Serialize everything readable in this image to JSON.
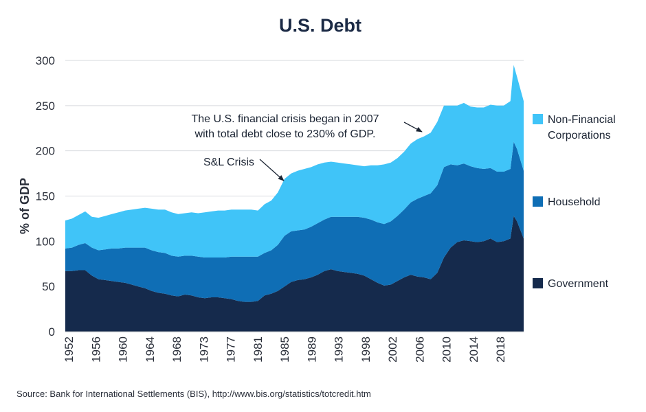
{
  "chart_data": {
    "type": "area",
    "stacked": true,
    "title": "U.S. Debt",
    "ylabel": "% of GDP",
    "ylim": [
      0,
      300
    ],
    "yticks": [
      0,
      50,
      100,
      150,
      200,
      250,
      300
    ],
    "xlim": [
      1952,
      2021
    ],
    "xtick_labels": [
      "1952",
      "1956",
      "1960",
      "1964",
      "1968",
      "1973",
      "1977",
      "1981",
      "1985",
      "1989",
      "1993",
      "1998",
      "2002",
      "2006",
      "2010",
      "2014",
      "2018"
    ],
    "grid": true,
    "legend_position": "right",
    "x": [
      1952,
      1953,
      1954,
      1955,
      1956,
      1957,
      1958,
      1959,
      1960,
      1961,
      1962,
      1963,
      1964,
      1965,
      1966,
      1967,
      1968,
      1969,
      1970,
      1971,
      1972,
      1973,
      1974,
      1975,
      1976,
      1977,
      1978,
      1979,
      1980,
      1981,
      1982,
      1983,
      1984,
      1985,
      1986,
      1987,
      1988,
      1989,
      1990,
      1991,
      1992,
      1993,
      1994,
      1995,
      1996,
      1997,
      1998,
      1999,
      2000,
      2001,
      2002,
      2003,
      2004,
      2005,
      2006,
      2007,
      2008,
      2009,
      2010,
      2011,
      2012,
      2013,
      2014,
      2015,
      2016,
      2017,
      2018,
      2019,
      2019.5,
      2020,
      2021
    ],
    "series": [
      {
        "name": "Government",
        "color": "#152a4c",
        "values": [
          67,
          67,
          68,
          68,
          62,
          58,
          57,
          56,
          55,
          54,
          52,
          50,
          48,
          45,
          43,
          42,
          40,
          39,
          41,
          40,
          38,
          37,
          38,
          38,
          37,
          36,
          34,
          33,
          33,
          34,
          40,
          42,
          45,
          50,
          55,
          57,
          58,
          60,
          63,
          67,
          69,
          67,
          66,
          65,
          64,
          62,
          58,
          54,
          51,
          52,
          56,
          60,
          63,
          61,
          60,
          58,
          65,
          82,
          93,
          99,
          101,
          100,
          99,
          100,
          103,
          99,
          100,
          103,
          128,
          122,
          103
        ]
      },
      {
        "name": "Household",
        "color": "#0f6eb5",
        "values": [
          25,
          26,
          28,
          30,
          31,
          32,
          34,
          36,
          37,
          39,
          41,
          43,
          45,
          45,
          45,
          45,
          44,
          44,
          43,
          44,
          45,
          45,
          44,
          44,
          45,
          47,
          49,
          50,
          50,
          49,
          47,
          48,
          51,
          56,
          56,
          55,
          55,
          56,
          57,
          57,
          58,
          60,
          61,
          62,
          63,
          64,
          66,
          67,
          68,
          70,
          72,
          75,
          80,
          86,
          90,
          95,
          97,
          100,
          92,
          85,
          85,
          83,
          82,
          80,
          78,
          78,
          77,
          77,
          82,
          80,
          75
        ]
      },
      {
        "name": "Non-Financial Corporations",
        "color": "#40c4f8",
        "values": [
          31,
          32,
          33,
          35,
          34,
          36,
          37,
          38,
          40,
          41,
          42,
          43,
          44,
          46,
          47,
          48,
          48,
          47,
          47,
          48,
          48,
          50,
          51,
          52,
          52,
          52,
          52,
          52,
          52,
          51,
          54,
          55,
          58,
          63,
          64,
          66,
          67,
          66,
          65,
          63,
          61,
          60,
          59,
          58,
          57,
          57,
          60,
          63,
          66,
          65,
          64,
          64,
          65,
          66,
          66,
          67,
          70,
          68,
          65,
          66,
          67,
          66,
          67,
          68,
          70,
          73,
          73,
          75,
          85,
          80,
          77
        ]
      }
    ],
    "annotations": [
      {
        "text_lines": [
          "The U.S. financial crisis began in 2007",
          "with total debt close to 230% of GDP."
        ],
        "x": 2006,
        "y": 218
      },
      {
        "text_lines": [
          "S&L Crisis"
        ],
        "x": 1985,
        "y": 170
      }
    ]
  },
  "legend": [
    {
      "lines": [
        "Non-Financial",
        "Corporations"
      ],
      "color": "#40c4f8"
    },
    {
      "lines": [
        "Household"
      ],
      "color": "#0f6eb5"
    },
    {
      "lines": [
        "Government"
      ],
      "color": "#152a4c"
    }
  ],
  "source": "Source: Bank for International Settlements (BIS), http://www.bis.org/statistics/totcredit.htm"
}
